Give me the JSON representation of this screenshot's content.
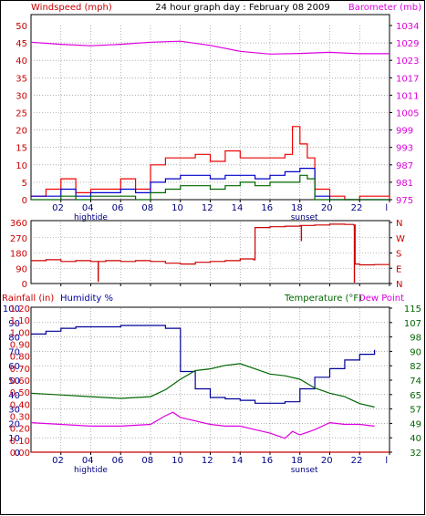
{
  "colors": {
    "wind_axis": "#cc0000",
    "barometer": "#dd00dd",
    "gust": "#ee0000",
    "average": "#0000cc",
    "direction": "#cc0000",
    "rain": "#cc0000",
    "humidity": "#000099",
    "temperature": "#006600",
    "dew_point": "#dd00dd",
    "grid": "#808080"
  },
  "header": {
    "wind_label": "Windspeed (mph)",
    "title": "24 hour graph day : February 08 2009",
    "baro_label": "Barometer (mb)"
  },
  "middle": {
    "compass_labels": [
      "N",
      "W",
      "S",
      "E",
      "N"
    ]
  },
  "bottom": {
    "rain_label": "Rainfall (in)",
    "humidity_label": "Humidity %",
    "temp_label": "Temperature (°F)",
    "dew_label": "Dew Point"
  },
  "chart_data": [
    {
      "type": "line",
      "name": "wind_and_barometer",
      "x_ticks": [
        "02",
        "04",
        "06",
        "08",
        "10",
        "12",
        "14",
        "16",
        "18",
        "20",
        "22",
        "l"
      ],
      "x_annotations": [
        {
          "x": 4,
          "text": "hightide"
        },
        {
          "x": 18.3,
          "text": "sunset"
        }
      ],
      "y_left": {
        "ticks": [
          "0",
          "5",
          "10",
          "15",
          "20",
          "25",
          "30",
          "35",
          "40",
          "45",
          "50"
        ],
        "range": [
          0,
          50
        ],
        "label": "Windspeed (mph)"
      },
      "y_right": {
        "ticks": [
          "975",
          "981",
          "987",
          "993",
          "999",
          "1005",
          "1011",
          "1017",
          "1023",
          "1029",
          "1034"
        ],
        "label": "Barometer (mb)"
      },
      "series": [
        {
          "color": "#dd00dd",
          "x": [
            0,
            2,
            4,
            6,
            8,
            10,
            12,
            14,
            16,
            18,
            20,
            22,
            24
          ],
          "values": [
            45.2,
            44.6,
            44.2,
            44.6,
            45.2,
            45.5,
            44.3,
            42.6,
            41.8,
            42.0,
            42.3,
            41.9,
            41.9
          ]
        },
        {
          "color": "#ee0000",
          "x": [
            0,
            1,
            2,
            3,
            4,
            5,
            6,
            7,
            8,
            9,
            10,
            11,
            12,
            13,
            14,
            15,
            16,
            17,
            17.5,
            18,
            18.5,
            19,
            20,
            21,
            22,
            23,
            24
          ],
          "values": [
            1,
            3,
            6,
            2,
            3,
            3,
            6,
            3,
            10,
            12,
            12,
            13,
            11,
            14,
            12,
            12,
            12,
            13,
            21,
            16,
            12,
            3,
            1,
            0,
            1,
            1,
            0
          ]
        },
        {
          "color": "#0000cc",
          "x": [
            0,
            1,
            2,
            3,
            4,
            5,
            6,
            7,
            8,
            9,
            10,
            11,
            12,
            13,
            14,
            15,
            16,
            17,
            18,
            18.5,
            19,
            20,
            21,
            22,
            23,
            24
          ],
          "values": [
            1,
            1,
            3,
            1,
            2,
            2,
            3,
            2,
            5,
            6,
            7,
            7,
            6,
            7,
            7,
            6,
            7,
            8,
            9,
            9,
            1,
            0,
            0,
            0,
            0,
            0
          ]
        },
        {
          "color": "#006600",
          "x": [
            0,
            1,
            2,
            3,
            4,
            5,
            6,
            7,
            8,
            9,
            10,
            11,
            12,
            13,
            14,
            15,
            16,
            17,
            18,
            18.5,
            19,
            20,
            21,
            22,
            23,
            24
          ],
          "values": [
            0,
            0,
            1,
            0,
            1,
            1,
            1,
            0,
            2,
            3,
            4,
            4,
            3,
            4,
            5,
            4,
            5,
            5,
            7,
            6,
            0,
            0,
            0,
            0,
            0,
            0
          ]
        }
      ]
    },
    {
      "type": "line",
      "name": "wind_direction",
      "y_left": {
        "ticks": [
          "0",
          "90",
          "180",
          "270",
          "360"
        ],
        "range": [
          0,
          360
        ]
      },
      "y_right": {
        "ticks": [
          "N",
          "W",
          "S",
          "E",
          "N"
        ]
      },
      "series": [
        {
          "color": "#cc0000",
          "x": [
            0,
            1,
            2,
            3,
            4,
            5,
            6,
            7,
            8,
            9,
            10,
            11,
            12,
            13,
            14,
            14.9,
            15,
            16,
            17,
            18,
            19,
            20,
            21,
            21.6,
            21.7,
            22,
            23,
            24
          ],
          "values": [
            135,
            140,
            130,
            135,
            130,
            135,
            130,
            135,
            130,
            120,
            115,
            125,
            130,
            135,
            145,
            140,
            330,
            335,
            338,
            342,
            345,
            350,
            348,
            345,
            115,
            110,
            112,
            108
          ]
        }
      ],
      "spikes": [
        {
          "x": 4.5,
          "value": 10
        },
        {
          "x": 18.1,
          "value": 250
        },
        {
          "x": 21.65,
          "value": 5
        }
      ]
    },
    {
      "type": "line",
      "name": "humidity_temperature",
      "y_left_rain": {
        "ticks": [
          "0.00",
          "0.10",
          "0.20",
          "0.30",
          "0.40",
          "0.50",
          "0.60",
          "0.70",
          "0.80",
          "0.90",
          "1.00",
          "1.10",
          "1.20"
        ],
        "label": "Rainfall (in)"
      },
      "y_left_humidity": {
        "ticks": [
          "0",
          "10",
          "20",
          "30",
          "40",
          "50",
          "60",
          "70",
          "80",
          "90",
          "100"
        ],
        "range": [
          0,
          100
        ],
        "label": "Humidity %"
      },
      "y_right": {
        "ticks": [
          "32",
          "40",
          "49",
          "57",
          "65",
          "74",
          "82",
          "90",
          "98",
          "107",
          "115"
        ],
        "range": [
          32,
          115
        ],
        "label": "Temperature (°F)"
      },
      "series": [
        {
          "color": "#000099",
          "x": [
            0,
            1,
            2,
            3,
            4,
            5,
            6,
            7,
            8,
            9,
            10,
            11,
            12,
            13,
            14,
            15,
            16,
            17,
            18,
            19,
            20,
            21,
            22,
            23
          ],
          "values": [
            82,
            84,
            86,
            87,
            87,
            87,
            88,
            88,
            88,
            86,
            56,
            44,
            38,
            37,
            36,
            34,
            34,
            35,
            44,
            52,
            58,
            64,
            68,
            71
          ]
        },
        {
          "color": "#006600",
          "x": [
            0,
            2,
            4,
            6,
            8,
            9,
            10,
            11,
            12,
            13,
            14,
            15,
            16,
            17,
            18,
            19,
            20,
            21,
            22,
            23
          ],
          "values": [
            66,
            65,
            64,
            63,
            64,
            68,
            74,
            79,
            80,
            82,
            83,
            80,
            77,
            76,
            74,
            69,
            66,
            64,
            60,
            58
          ]
        },
        {
          "color": "#dd00dd",
          "x": [
            0,
            2,
            4,
            6,
            8,
            9,
            9.5,
            10,
            11,
            12,
            13,
            14,
            15,
            16,
            17,
            17.5,
            18,
            19,
            20,
            21,
            22,
            23
          ],
          "values": [
            49,
            48,
            47,
            47,
            48,
            53,
            55,
            52,
            50,
            48,
            47,
            47,
            45,
            43,
            40,
            44,
            42,
            45,
            49,
            48,
            48,
            47
          ]
        },
        {
          "color": "#cc0000",
          "x": [
            0,
            24
          ],
          "values": [
            0,
            0
          ]
        }
      ],
      "x_ticks": [
        "02",
        "04",
        "06",
        "08",
        "10",
        "12",
        "14",
        "16",
        "18",
        "20",
        "22",
        "l"
      ],
      "x_annotations": [
        {
          "x": 4,
          "text": "hightide"
        },
        {
          "x": 18.3,
          "text": "sunset"
        }
      ]
    }
  ]
}
